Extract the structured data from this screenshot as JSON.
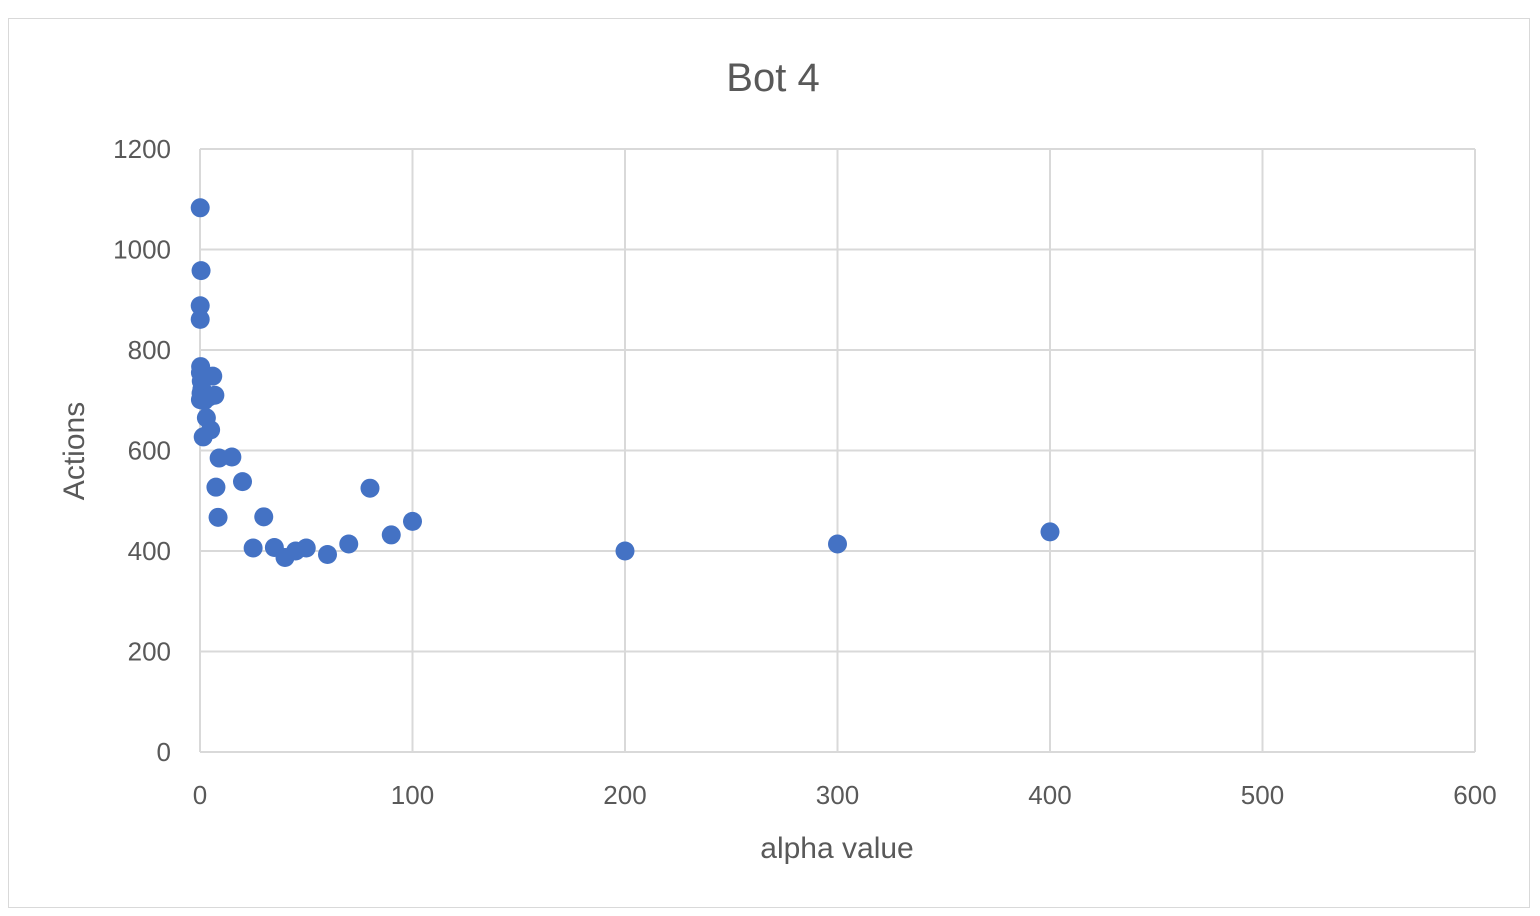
{
  "chart_data": {
    "type": "scatter",
    "title": "Bot 4",
    "xlabel": "alpha value",
    "ylabel": "Actions",
    "xlim": [
      0,
      600
    ],
    "ylim": [
      0,
      1200
    ],
    "xticks": [
      0,
      100,
      200,
      300,
      400,
      500,
      600
    ],
    "yticks": [
      0,
      200,
      400,
      600,
      800,
      1000,
      1200
    ],
    "xtick_labels": [
      "0",
      "100",
      "200",
      "300",
      "400",
      "500",
      "600"
    ],
    "ytick_labels": [
      "0",
      "200",
      "400",
      "600",
      "800",
      "1000",
      "1200"
    ],
    "grid": true,
    "legend": "none",
    "marker_color": "#4472C4",
    "grid_color": "#d9d9d9",
    "series": [
      {
        "points": [
          {
            "x": 0.1,
            "y": 1083
          },
          {
            "x": 0.5,
            "y": 958
          },
          {
            "x": 0.1,
            "y": 888
          },
          {
            "x": 0.1,
            "y": 861
          },
          {
            "x": 0.3,
            "y": 767
          },
          {
            "x": 0.2,
            "y": 755
          },
          {
            "x": 0.6,
            "y": 738
          },
          {
            "x": 0.9,
            "y": 722
          },
          {
            "x": 0.5,
            "y": 714
          },
          {
            "x": 0.2,
            "y": 701
          },
          {
            "x": 2,
            "y": 699
          },
          {
            "x": 6,
            "y": 748
          },
          {
            "x": 7,
            "y": 710
          },
          {
            "x": 4,
            "y": 706
          },
          {
            "x": 3,
            "y": 665
          },
          {
            "x": 5,
            "y": 641
          },
          {
            "x": 1.5,
            "y": 627
          },
          {
            "x": 9,
            "y": 585
          },
          {
            "x": 15,
            "y": 587
          },
          {
            "x": 20,
            "y": 538
          },
          {
            "x": 7.5,
            "y": 527
          },
          {
            "x": 8.5,
            "y": 467
          },
          {
            "x": 30,
            "y": 468
          },
          {
            "x": 25,
            "y": 406
          },
          {
            "x": 35,
            "y": 407
          },
          {
            "x": 40,
            "y": 387
          },
          {
            "x": 45,
            "y": 400
          },
          {
            "x": 50,
            "y": 406
          },
          {
            "x": 60,
            "y": 393
          },
          {
            "x": 70,
            "y": 414
          },
          {
            "x": 80,
            "y": 525
          },
          {
            "x": 90,
            "y": 432
          },
          {
            "x": 100,
            "y": 459
          },
          {
            "x": 200,
            "y": 400
          },
          {
            "x": 300,
            "y": 414
          },
          {
            "x": 400,
            "y": 438
          }
        ]
      }
    ]
  }
}
